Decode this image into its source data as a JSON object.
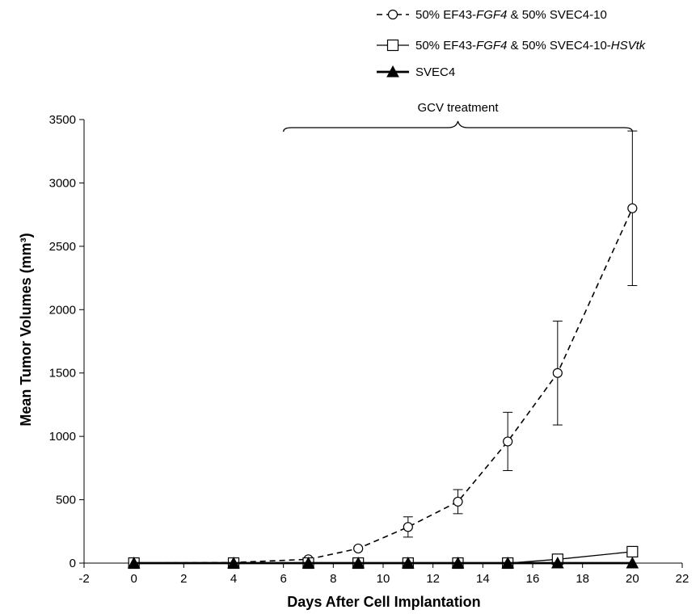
{
  "chart_data": {
    "type": "line",
    "title": "",
    "xlabel": "Days After Cell Implantation",
    "ylabel": "Mean Tumor Volumes (mm³)",
    "xlim": [
      -2,
      22
    ],
    "ylim": [
      0,
      3500
    ],
    "xticks": [
      -2,
      0,
      2,
      4,
      6,
      8,
      10,
      12,
      14,
      16,
      18,
      20,
      22
    ],
    "yticks": [
      0,
      500,
      1000,
      1500,
      2000,
      2500,
      3000,
      3500
    ],
    "grid": false,
    "legend_position": "top-right",
    "annotation": {
      "text": "GCV treatment",
      "x_start": 6,
      "x_end": 20
    },
    "series": [
      {
        "name": "50% EF43-FGF4 & 50% SVEC4-10",
        "name_parts": [
          {
            "text": "50% EF43-",
            "italic": false
          },
          {
            "text": "FGF4",
            "italic": true
          },
          {
            "text": " & 50% SVEC4-10",
            "italic": false
          }
        ],
        "marker": "circle-open",
        "line": "dashed",
        "x": [
          0,
          4,
          7,
          9,
          11,
          13,
          15,
          17,
          20
        ],
        "y": [
          0,
          5,
          30,
          115,
          285,
          485,
          960,
          1500,
          2800
        ],
        "error": [
          0,
          0,
          0,
          0,
          80,
          95,
          230,
          410,
          610
        ]
      },
      {
        "name": "50% EF43-FGF4 & 50% SVEC4-10-HSVtk",
        "name_parts": [
          {
            "text": "50% EF43-",
            "italic": false
          },
          {
            "text": "FGF4",
            "italic": true
          },
          {
            "text": " & 50% SVEC4-10-",
            "italic": false
          },
          {
            "text": "HSVtk",
            "italic": true
          }
        ],
        "marker": "square-open",
        "line": "solid-thin",
        "x": [
          0,
          4,
          7,
          9,
          11,
          13,
          15,
          17,
          20
        ],
        "y": [
          0,
          0,
          0,
          0,
          0,
          0,
          0,
          30,
          90
        ],
        "error": [
          0,
          0,
          0,
          0,
          0,
          0,
          0,
          0,
          0
        ]
      },
      {
        "name": "SVEC4",
        "name_parts": [
          {
            "text": "SVEC4",
            "italic": false
          }
        ],
        "marker": "triangle-filled",
        "line": "solid-thick",
        "x": [
          0,
          4,
          7,
          9,
          11,
          13,
          15,
          17,
          20
        ],
        "y": [
          0,
          0,
          0,
          0,
          0,
          0,
          0,
          0,
          0
        ],
        "error": [
          0,
          0,
          0,
          0,
          0,
          0,
          0,
          0,
          0
        ]
      }
    ]
  }
}
